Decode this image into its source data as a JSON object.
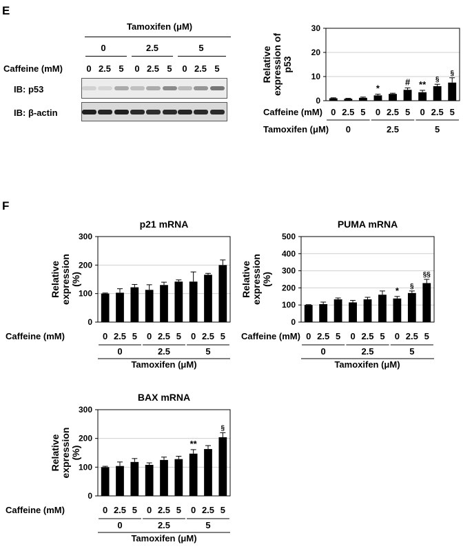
{
  "panel_e": {
    "letter": "E",
    "western": {
      "treatment_label": "Tamoxifen (μM)",
      "tamoxifen_groups": [
        "0",
        "2.5",
        "5"
      ],
      "caffeine_label": "Caffeine (mM)",
      "caffeine_levels": [
        "0",
        "2.5",
        "5",
        "0",
        "2.5",
        "5",
        "0",
        "2.5",
        "5"
      ],
      "blot_labels": [
        "IB: p53",
        "IB: β-actin"
      ],
      "p53_band_intensity": [
        0.12,
        0.1,
        0.3,
        0.2,
        0.3,
        0.45,
        0.22,
        0.4,
        0.55
      ],
      "actin_band_intensity": [
        0.95,
        0.92,
        0.95,
        0.9,
        0.88,
        0.9,
        0.92,
        0.9,
        0.9
      ]
    }
  },
  "panel_f": {
    "letter": "F"
  },
  "chart_data": [
    {
      "type": "bar",
      "title": "",
      "ylabel": "Relative expression of p53",
      "xlabel_caffeine": "Caffeine (mM)",
      "xlabel_tamoxifen": "Tamoxifen (μM)",
      "categories": [
        "0",
        "2.5",
        "5",
        "0",
        "2.5",
        "5",
        "0",
        "2.5",
        "5"
      ],
      "groups": [
        "0",
        "2.5",
        "5"
      ],
      "ylim": [
        0,
        30
      ],
      "yticks": [
        0,
        10,
        20,
        30
      ],
      "grid": true,
      "values": [
        1,
        0.8,
        1.2,
        2.2,
        2.8,
        4.5,
        3.5,
        6,
        7.5
      ],
      "errors": [
        0.2,
        0.2,
        0.3,
        0.5,
        0.3,
        0.8,
        0.8,
        0.8,
        2
      ],
      "annotations": [
        "",
        "",
        "",
        "*",
        "",
        "#",
        "**",
        "§",
        "§"
      ]
    },
    {
      "type": "bar",
      "title": "p21 mRNA",
      "ylabel": "Relative expression (%)",
      "xlabel_caffeine": "Caffeine (mM)",
      "xlabel_tamoxifen": "Tamoxifen (μM)",
      "categories": [
        "0",
        "2.5",
        "5",
        "0",
        "2.5",
        "5",
        "0",
        "2.5",
        "5"
      ],
      "groups": [
        "0",
        "2.5",
        "5"
      ],
      "ylim": [
        0,
        300
      ],
      "yticks": [
        0,
        100,
        200,
        300
      ],
      "grid": true,
      "values": [
        100,
        103,
        122,
        113,
        130,
        142,
        142,
        166,
        200
      ],
      "errors": [
        2,
        14,
        10,
        18,
        10,
        6,
        34,
        5,
        18
      ],
      "annotations": [
        "",
        "",
        "",
        "",
        "",
        "",
        "",
        "",
        ""
      ]
    },
    {
      "type": "bar",
      "title": "PUMA mRNA",
      "ylabel": "Relative expression (%)",
      "xlabel_caffeine": "Caffeine (mM)",
      "xlabel_tamoxifen": "Tamoxifen (μM)",
      "categories": [
        "0",
        "2.5",
        "5",
        "0",
        "2.5",
        "5",
        "0",
        "2.5",
        "5"
      ],
      "groups": [
        "0",
        "2.5",
        "5"
      ],
      "ylim": [
        0,
        500
      ],
      "yticks": [
        0,
        100,
        200,
        300,
        400,
        500
      ],
      "grid": true,
      "values": [
        100,
        105,
        133,
        115,
        133,
        160,
        138,
        170,
        228
      ],
      "errors": [
        2,
        12,
        8,
        12,
        12,
        22,
        12,
        12,
        22
      ],
      "annotations": [
        "",
        "",
        "",
        "",
        "",
        "",
        "*",
        "§",
        "§§"
      ]
    },
    {
      "type": "bar",
      "title": "BAX mRNA",
      "ylabel": "Relative expression (%)",
      "xlabel_caffeine": "Caffeine (mM)",
      "xlabel_tamoxifen": "Tamoxifen (μM)",
      "categories": [
        "0",
        "2.5",
        "5",
        "0",
        "2.5",
        "5",
        "0",
        "2.5",
        "5"
      ],
      "groups": [
        "0",
        "2.5",
        "5"
      ],
      "ylim": [
        0,
        300
      ],
      "yticks": [
        0,
        100,
        200,
        300
      ],
      "grid": true,
      "values": [
        100,
        104,
        118,
        108,
        125,
        128,
        147,
        163,
        204
      ],
      "errors": [
        3,
        14,
        12,
        7,
        10,
        10,
        14,
        12,
        16
      ],
      "annotations": [
        "",
        "",
        "",
        "",
        "",
        "",
        "**",
        "",
        "§"
      ]
    }
  ]
}
